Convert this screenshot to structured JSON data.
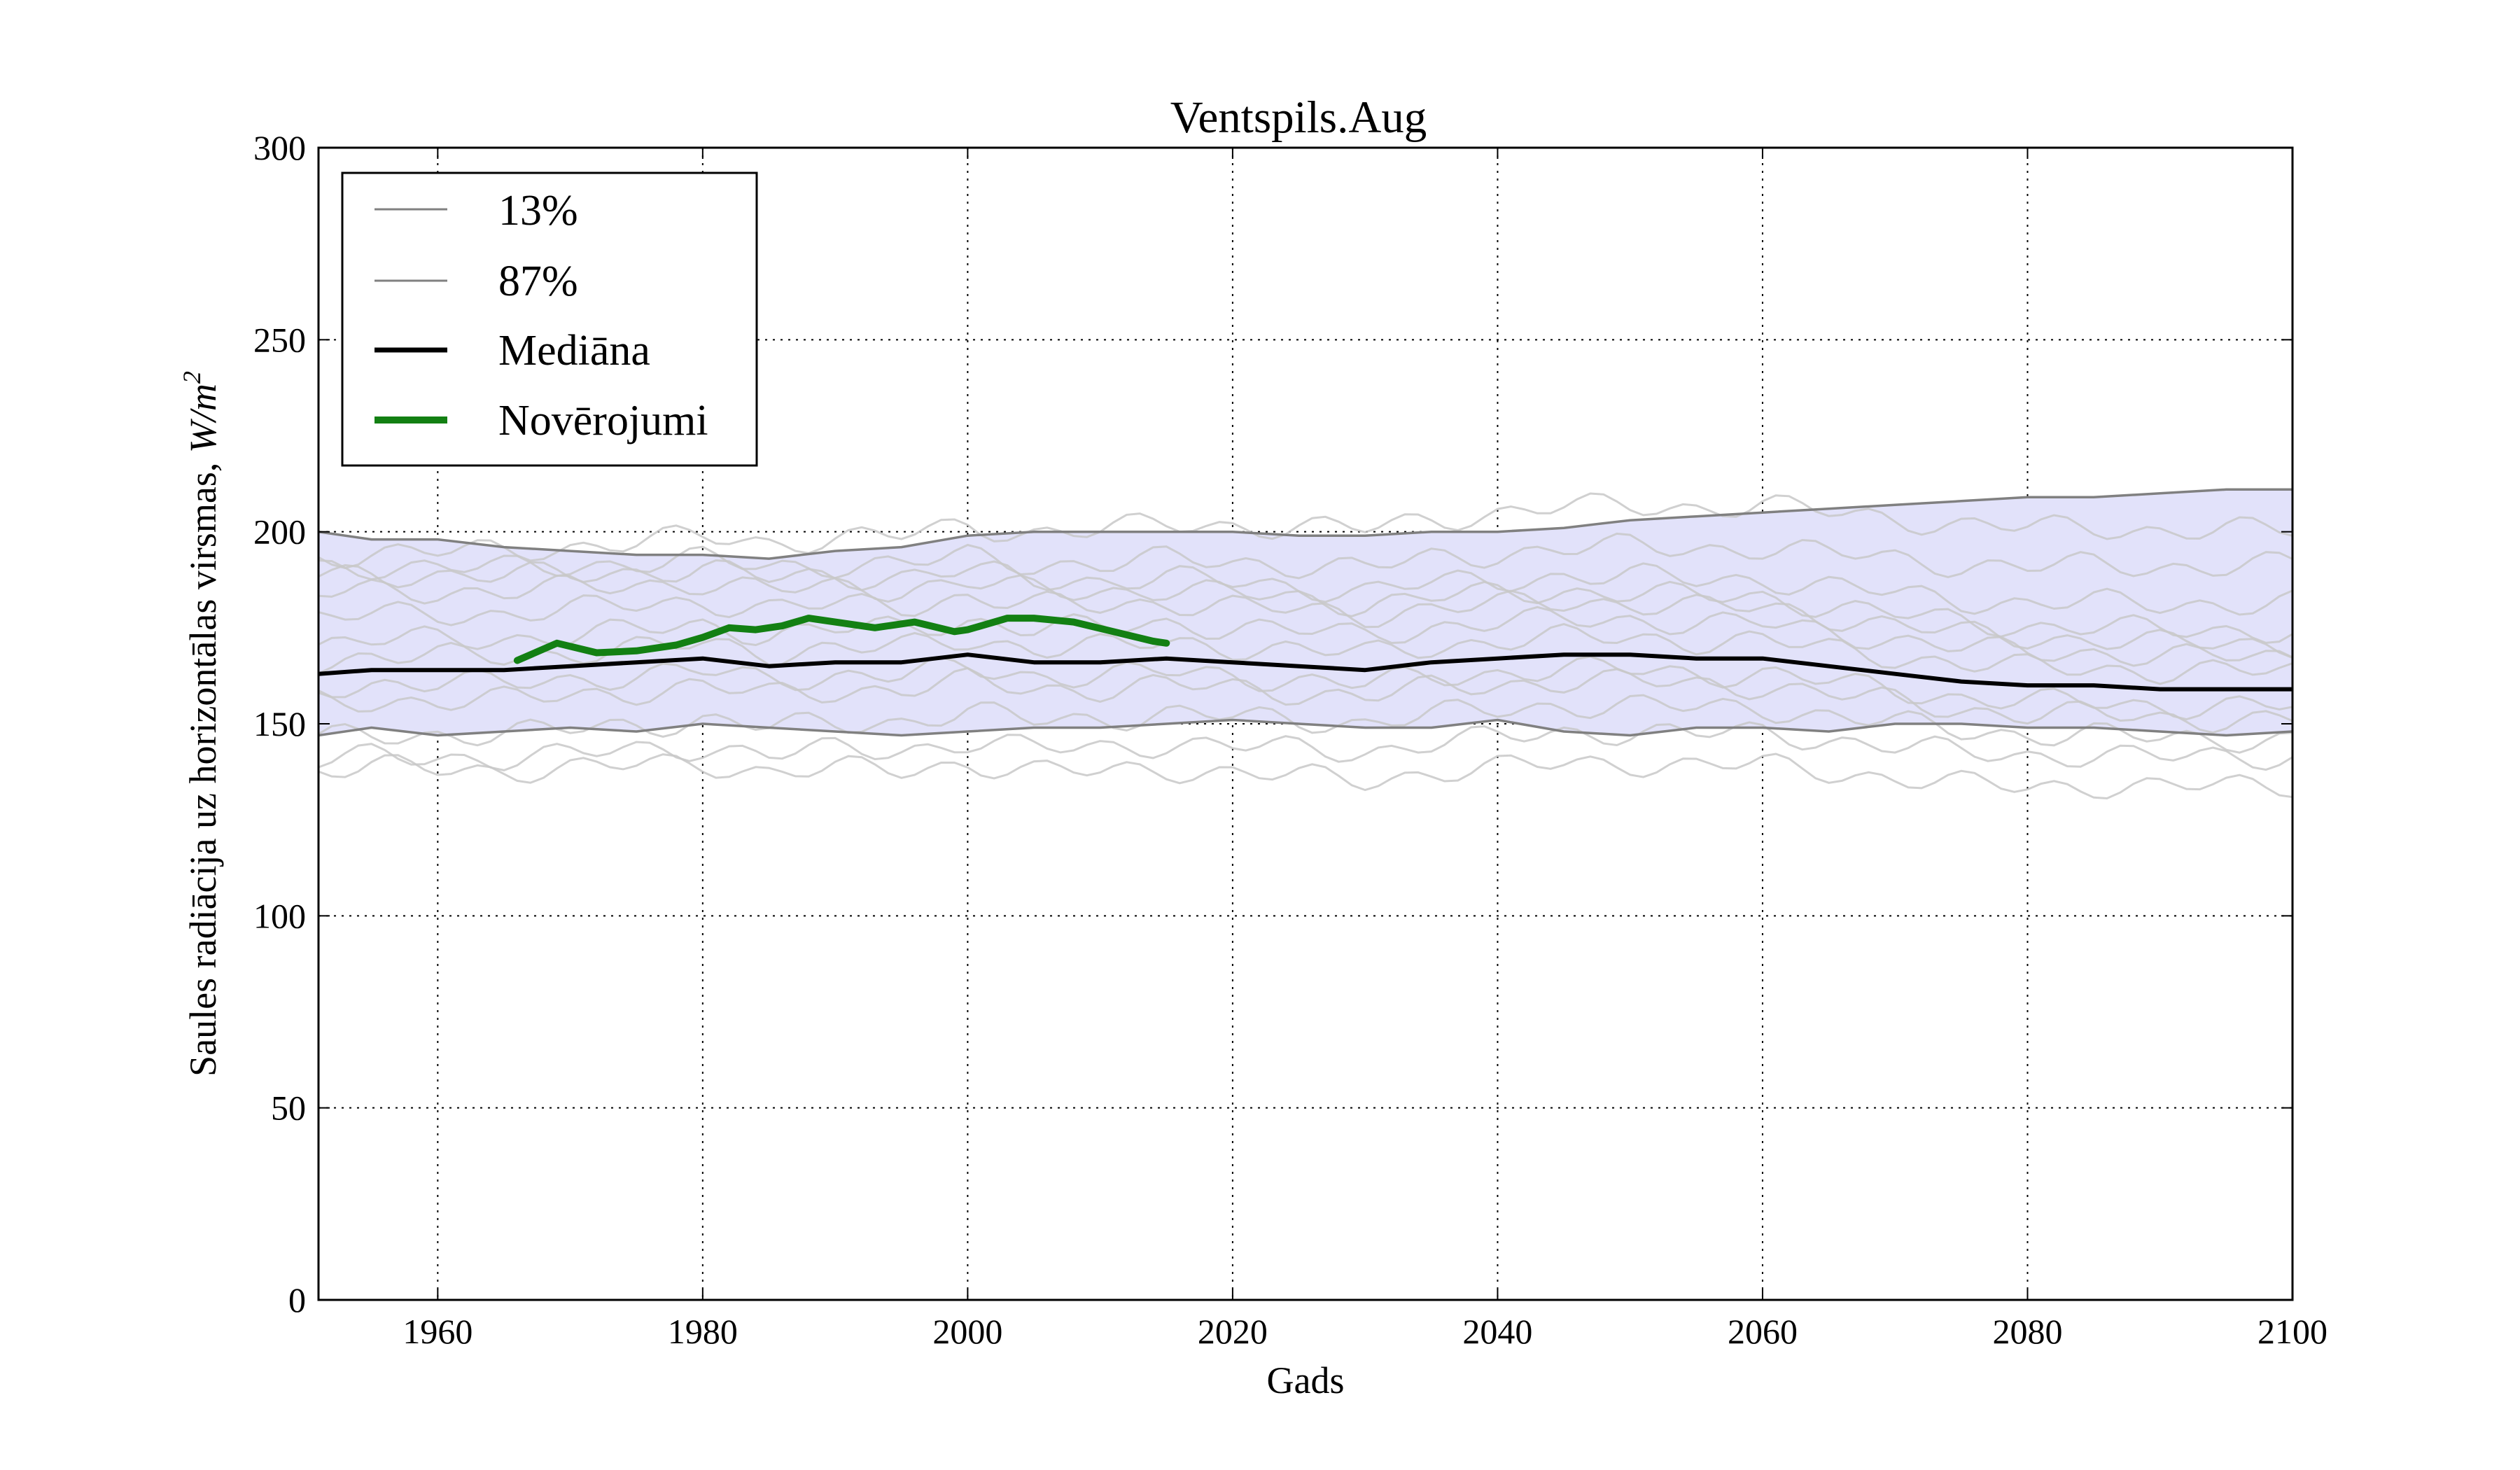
{
  "chart_data": {
    "type": "line",
    "title": "Ventspils.Aug",
    "xlabel": "Gads",
    "ylabel": "Saules radiācija uz horizontālas virsmas, ",
    "ylabel_math": "W/m",
    "ylabel_exp": "2",
    "xlim": [
      1951,
      2100
    ],
    "ylim": [
      0,
      300
    ],
    "xticks": [
      1960,
      1980,
      2000,
      2020,
      2040,
      2060,
      2080,
      2100
    ],
    "yticks": [
      0,
      50,
      100,
      150,
      200,
      250,
      300
    ],
    "grid": true,
    "legend_position": "top-left",
    "legend": [
      "13%",
      "87%",
      "Mediāna",
      "Novērojumi"
    ],
    "colors": {
      "ensemble": "#c8c8c8",
      "percentile": "#808080",
      "band": "#e2e2fa",
      "median": "#000000",
      "observations": "#138013"
    },
    "series": [
      {
        "name": "13%",
        "x": [
          1951,
          1955,
          1960,
          1965,
          1970,
          1975,
          1980,
          1985,
          1990,
          1995,
          2000,
          2005,
          2010,
          2015,
          2020,
          2025,
          2030,
          2035,
          2040,
          2045,
          2050,
          2055,
          2060,
          2065,
          2070,
          2075,
          2080,
          2085,
          2090,
          2095,
          2100
        ],
        "values": [
          147,
          149,
          147,
          148,
          149,
          148,
          150,
          149,
          148,
          147,
          148,
          149,
          149,
          150,
          151,
          150,
          149,
          149,
          151,
          148,
          147,
          149,
          149,
          148,
          150,
          150,
          149,
          149,
          148,
          147,
          148
        ]
      },
      {
        "name": "87%",
        "x": [
          1951,
          1955,
          1960,
          1965,
          1970,
          1975,
          1980,
          1985,
          1990,
          1995,
          2000,
          2005,
          2010,
          2015,
          2020,
          2025,
          2030,
          2035,
          2040,
          2045,
          2050,
          2055,
          2060,
          2065,
          2070,
          2075,
          2080,
          2085,
          2090,
          2095,
          2100
        ],
        "values": [
          200,
          198,
          198,
          196,
          195,
          194,
          194,
          193,
          195,
          196,
          199,
          200,
          200,
          200,
          200,
          199,
          199,
          200,
          200,
          201,
          203,
          204,
          205,
          206,
          207,
          208,
          209,
          209,
          210,
          211,
          211
        ]
      },
      {
        "name": "Mediāna",
        "x": [
          1951,
          1955,
          1960,
          1965,
          1970,
          1975,
          1980,
          1985,
          1990,
          1995,
          2000,
          2005,
          2010,
          2015,
          2020,
          2025,
          2030,
          2035,
          2040,
          2045,
          2050,
          2055,
          2060,
          2065,
          2070,
          2075,
          2080,
          2085,
          2090,
          2095,
          2100
        ],
        "values": [
          163,
          164,
          164,
          164,
          165,
          166,
          167,
          165,
          166,
          166,
          168,
          166,
          166,
          167,
          166,
          165,
          164,
          166,
          167,
          168,
          168,
          167,
          167,
          165,
          163,
          161,
          160,
          160,
          159,
          159,
          159
        ]
      },
      {
        "name": "Novērojumi",
        "x": [
          1966,
          1969,
          1972,
          1975,
          1978,
          1980,
          1982,
          1984,
          1986,
          1988,
          1990,
          1993,
          1996,
          1999,
          2000,
          2003,
          2005,
          2008,
          2011,
          2014,
          2015
        ],
        "values": [
          166.5,
          171,
          168.5,
          169,
          170.5,
          172.5,
          175,
          174.5,
          175.5,
          177.5,
          176.5,
          175,
          176.5,
          174,
          174.5,
          177.5,
          177.5,
          176.5,
          174,
          171.5,
          171
        ]
      }
    ]
  }
}
